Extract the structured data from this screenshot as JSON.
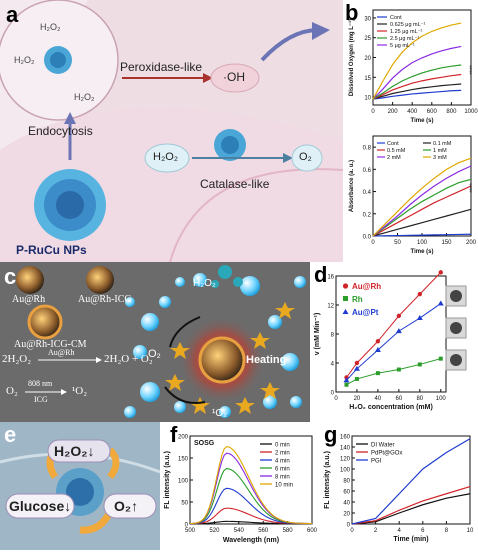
{
  "panel_a": {
    "label": "a",
    "h2o2": "H₂O₂",
    "peroxidase_label": "Peroxidase-like",
    "oh_label": "·OH",
    "endocytosis_label": "Endocytosis",
    "catalase_label": "Catalase-like",
    "h2o2_center": "H₂O₂",
    "o2_label": "O₂",
    "nps_label": "P-RuCu NPs"
  },
  "panel_b": {
    "label": "b",
    "significance": "****"
  },
  "panel_c": {
    "label": "c",
    "np1": "Au@Rh",
    "np2": "Au@Rh-ICG",
    "np3": "Au@Rh-ICG-CM",
    "eq1_left": "2H₂O₂",
    "eq1_cat": "Au@Rh",
    "eq1_right": "2H₂O + O₂",
    "eq2_left": "O₂",
    "eq2_top": "808 nm",
    "eq2_bottom": "ICG",
    "eq2_right": "¹O₂",
    "h2o2": "H₂O₂",
    "o2": "O₂",
    "heating": "Heating",
    "singlet": "¹O₂"
  },
  "panel_d": {
    "label": "d"
  },
  "panel_e": {
    "label": "e",
    "h2o2_down": "H₂O₂↓",
    "glucose_down": "Glucose↓",
    "o2_up": "O₂↑"
  },
  "panel_f": {
    "label": "f",
    "inset": "SOSG"
  },
  "panel_g": {
    "label": "g"
  },
  "chart_data": [
    {
      "id": "b_top",
      "type": "line",
      "xlabel": "Time (s)",
      "ylabel": "Dissolved Oxygen (mg L⁻¹)",
      "xlim": [
        0,
        1000
      ],
      "ylim": [
        8,
        32
      ],
      "xticks": [
        0,
        200,
        400,
        600,
        800,
        1000
      ],
      "yticks": [
        10,
        15,
        20,
        25,
        30
      ],
      "legend": "top-left",
      "series": [
        {
          "name": "Cont",
          "color": "#1f3ccf",
          "x": [
            0,
            100,
            200,
            300,
            400,
            500,
            600,
            700,
            800,
            900
          ],
          "y": [
            9.5,
            9.8,
            10.2,
            10.5,
            10.8,
            11.0,
            11.2,
            11.4,
            11.6,
            11.7
          ]
        },
        {
          "name": "0.625 μg mL⁻¹",
          "color": "#222222",
          "x": [
            0,
            100,
            200,
            300,
            400,
            500,
            600,
            700,
            800,
            900
          ],
          "y": [
            9.5,
            10.2,
            10.9,
            11.4,
            11.9,
            12.3,
            12.6,
            12.9,
            13.1,
            13.3
          ]
        },
        {
          "name": "1.25 μg mL⁻¹",
          "color": "#d1232a",
          "x": [
            0,
            100,
            200,
            300,
            400,
            500,
            600,
            700,
            800,
            900
          ],
          "y": [
            9.5,
            10.6,
            11.8,
            12.7,
            13.5,
            14.1,
            14.6,
            15.0,
            15.4,
            15.7
          ]
        },
        {
          "name": "2.5 μg mL⁻¹",
          "color": "#2a9d2a",
          "x": [
            0,
            100,
            200,
            300,
            400,
            500,
            600,
            700,
            800,
            900
          ],
          "y": [
            9.5,
            11.0,
            12.7,
            14.1,
            15.2,
            16.1,
            16.8,
            17.4,
            17.8,
            18.1
          ]
        },
        {
          "name": "5 μg mL⁻¹",
          "color": "#8a2be2",
          "x": [
            0,
            100,
            200,
            300,
            400,
            500,
            600,
            700,
            800,
            900
          ],
          "y": [
            9.5,
            12.0,
            14.8,
            17.0,
            18.7,
            19.9,
            20.9,
            21.7,
            22.3,
            22.8
          ]
        },
        {
          "name": "",
          "color": "#e0a800",
          "x": [
            0,
            100,
            200,
            300,
            400,
            500,
            600,
            700,
            800,
            900
          ],
          "y": [
            9.5,
            14.0,
            18.2,
            21.4,
            23.7,
            25.4,
            26.6,
            27.5,
            28.2,
            28.7
          ]
        }
      ]
    },
    {
      "id": "b_bottom",
      "type": "line",
      "xlabel": "Time (s)",
      "ylabel": "Absorbance (a. u.)",
      "xlim": [
        0,
        200
      ],
      "ylim": [
        0,
        0.9
      ],
      "xticks": [
        0,
        50,
        100,
        150,
        200
      ],
      "yticks": [
        0.0,
        0.2,
        0.4,
        0.6,
        0.8
      ],
      "legend": "top-left",
      "series": [
        {
          "name": "Cont",
          "color": "#1f3ccf",
          "x": [
            0,
            25,
            50,
            75,
            100,
            125,
            150,
            175,
            200
          ],
          "y": [
            0.0,
            0.002,
            0.004,
            0.006,
            0.008,
            0.01,
            0.012,
            0.014,
            0.016
          ]
        },
        {
          "name": "0.1 mM",
          "color": "#222222",
          "x": [
            0,
            25,
            50,
            75,
            100,
            125,
            150,
            175,
            200
          ],
          "y": [
            0.0,
            0.03,
            0.06,
            0.09,
            0.12,
            0.15,
            0.18,
            0.21,
            0.24
          ]
        },
        {
          "name": "0.5 mM",
          "color": "#d1232a",
          "x": [
            0,
            25,
            50,
            75,
            100,
            125,
            150,
            175,
            200
          ],
          "y": [
            0.0,
            0.06,
            0.12,
            0.18,
            0.24,
            0.3,
            0.35,
            0.4,
            0.45
          ]
        },
        {
          "name": "1 mM",
          "color": "#2a9d2a",
          "x": [
            0,
            25,
            50,
            75,
            100,
            125,
            150,
            175,
            200
          ],
          "y": [
            0.0,
            0.08,
            0.16,
            0.24,
            0.31,
            0.37,
            0.43,
            0.48,
            0.51
          ]
        },
        {
          "name": "2 mM",
          "color": "#8a2be2",
          "x": [
            0,
            25,
            50,
            75,
            100,
            125,
            150,
            175,
            200
          ],
          "y": [
            0.0,
            0.09,
            0.18,
            0.28,
            0.37,
            0.45,
            0.52,
            0.58,
            0.63
          ]
        },
        {
          "name": "3 mM",
          "color": "#e0a800",
          "x": [
            0,
            25,
            50,
            75,
            100,
            125,
            150,
            175,
            200
          ],
          "y": [
            0.0,
            0.11,
            0.22,
            0.33,
            0.43,
            0.52,
            0.6,
            0.66,
            0.7
          ]
        }
      ]
    },
    {
      "id": "d",
      "type": "line",
      "xlabel": "H₂O₂ concentration (mM)",
      "ylabel": "v (mM Min⁻¹)",
      "xlim": [
        0,
        105
      ],
      "ylim": [
        0,
        16
      ],
      "xticks": [
        0,
        20,
        40,
        60,
        80,
        100
      ],
      "yticks": [
        0,
        4,
        8,
        12,
        16
      ],
      "legend": "top-left",
      "series": [
        {
          "name": "Au@Rh",
          "color": "#d1232a",
          "marker": "circle",
          "x": [
            10,
            20,
            40,
            60,
            80,
            100
          ],
          "y": [
            2.0,
            4.0,
            7.0,
            10.5,
            13.5,
            16.5
          ]
        },
        {
          "name": "Rh",
          "color": "#2a9d2a",
          "marker": "square",
          "x": [
            10,
            20,
            40,
            60,
            80,
            100
          ],
          "y": [
            1.0,
            1.8,
            2.6,
            3.1,
            3.8,
            4.6
          ]
        },
        {
          "name": "Au@Pt",
          "color": "#1f3ccf",
          "marker": "triangle",
          "x": [
            10,
            20,
            40,
            60,
            80,
            100
          ],
          "y": [
            1.6,
            3.2,
            5.8,
            8.4,
            10.2,
            12.2
          ]
        }
      ]
    },
    {
      "id": "f",
      "type": "line",
      "xlabel": "Wavelength (nm)",
      "ylabel": "FL intensity (a.u.)",
      "xlim": [
        500,
        600
      ],
      "ylim": [
        0,
        200
      ],
      "xticks": [
        500,
        520,
        540,
        560,
        580,
        600
      ],
      "yticks": [
        0,
        50,
        100,
        150,
        200
      ],
      "legend": "top-right",
      "peak_x": 530,
      "series": [
        {
          "name": "0 min",
          "color": "#111111",
          "peak": 5
        },
        {
          "name": "2 min",
          "color": "#d1232a",
          "peak": 35
        },
        {
          "name": "4 min",
          "color": "#1f3ccf",
          "peak": 80
        },
        {
          "name": "6 min",
          "color": "#2a9d2a",
          "peak": 125
        },
        {
          "name": "8 min",
          "color": "#8a2be2",
          "peak": 160
        },
        {
          "name": "10 min",
          "color": "#e0a800",
          "peak": 175
        }
      ]
    },
    {
      "id": "g",
      "type": "line",
      "xlabel": "Time (min)",
      "ylabel": "FL intensity (a.u.)",
      "xlim": [
        0,
        10
      ],
      "ylim": [
        0,
        160
      ],
      "xticks": [
        0,
        2,
        4,
        6,
        8,
        10
      ],
      "yticks": [
        0,
        20,
        40,
        60,
        80,
        100,
        120,
        140,
        160
      ],
      "legend": "top-left",
      "series": [
        {
          "name": "DI Water",
          "color": "#111111",
          "x": [
            0,
            2,
            4,
            6,
            8,
            10
          ],
          "y": [
            0,
            4,
            20,
            35,
            47,
            55
          ]
        },
        {
          "name": "PdPt@GOx",
          "color": "#d1232a",
          "x": [
            0,
            2,
            4,
            6,
            8,
            10
          ],
          "y": [
            0,
            6,
            25,
            42,
            55,
            68
          ]
        },
        {
          "name": "PGI",
          "color": "#1f3ccf",
          "x": [
            0,
            2,
            4,
            6,
            8,
            10
          ],
          "y": [
            0,
            10,
            55,
            100,
            130,
            155
          ]
        }
      ]
    }
  ]
}
